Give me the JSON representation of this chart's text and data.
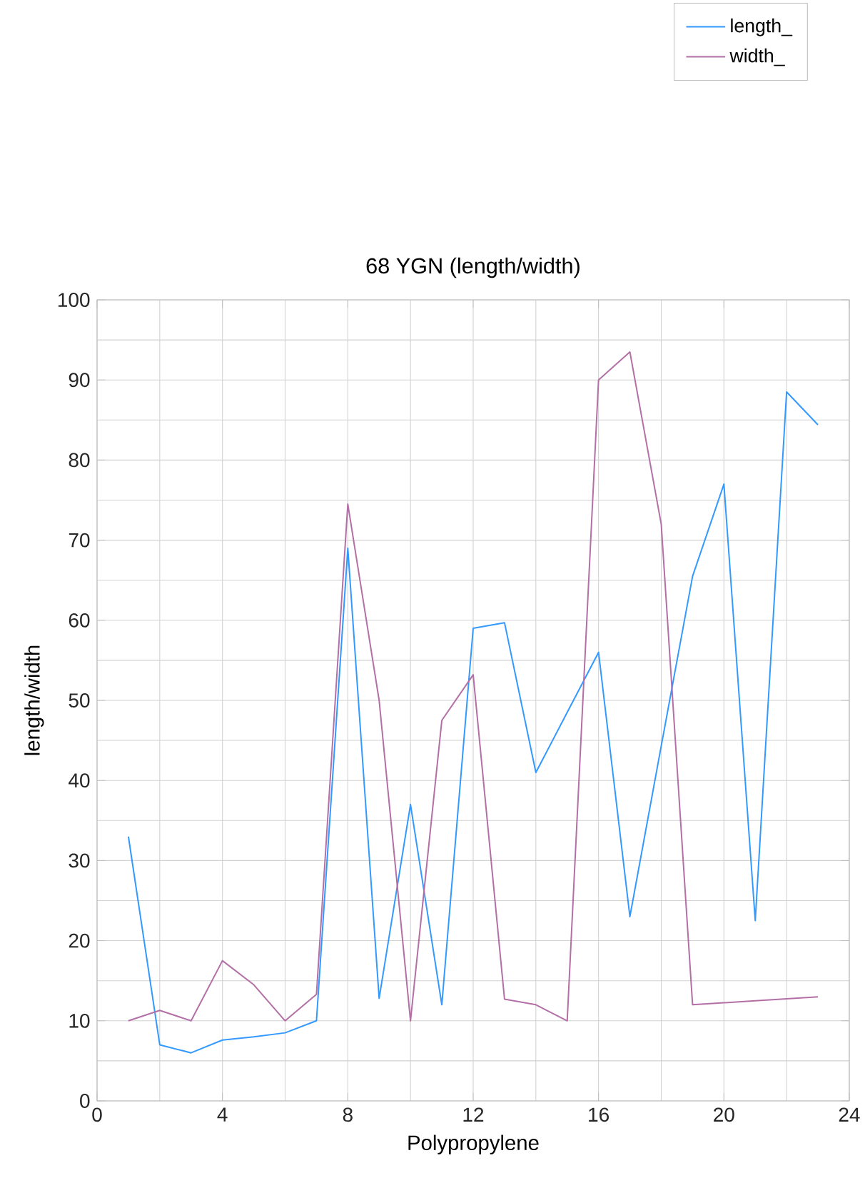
{
  "chart_data": {
    "type": "line",
    "title": "68 YGN (length/width)",
    "xlabel": "Polypropylene",
    "ylabel": "length/width",
    "x": [
      1,
      2,
      3,
      4,
      5,
      6,
      7,
      8,
      9,
      10,
      11,
      12,
      13,
      14,
      15,
      16,
      17,
      18,
      19,
      20,
      21,
      22,
      23
    ],
    "series": [
      {
        "name": "length_",
        "color": "#3399ff",
        "values": [
          33,
          7,
          6,
          7.6,
          8,
          8.5,
          10,
          69,
          12.8,
          37,
          12,
          59,
          59.7,
          41,
          48.5,
          56,
          23,
          44.3,
          65.5,
          77,
          22.5,
          88.5,
          84.4
        ]
      },
      {
        "name": "width_",
        "color": "#b36fa6",
        "values": [
          10,
          11.3,
          10,
          17.5,
          14.5,
          10,
          13.3,
          74.5,
          50,
          10,
          47.5,
          53.2,
          12.7,
          12,
          10,
          90,
          93.5,
          72,
          12,
          12.25,
          12.5,
          12.75,
          13
        ]
      }
    ],
    "xlim": [
      0,
      24
    ],
    "xticks": [
      0,
      4,
      8,
      12,
      16,
      20,
      24
    ],
    "ylim": [
      0,
      100
    ],
    "yticks": [
      0,
      10,
      20,
      30,
      40,
      50,
      60,
      70,
      80,
      90,
      100
    ],
    "grid": true,
    "legend": "top right",
    "marker": "none",
    "line_style": "solid"
  }
}
